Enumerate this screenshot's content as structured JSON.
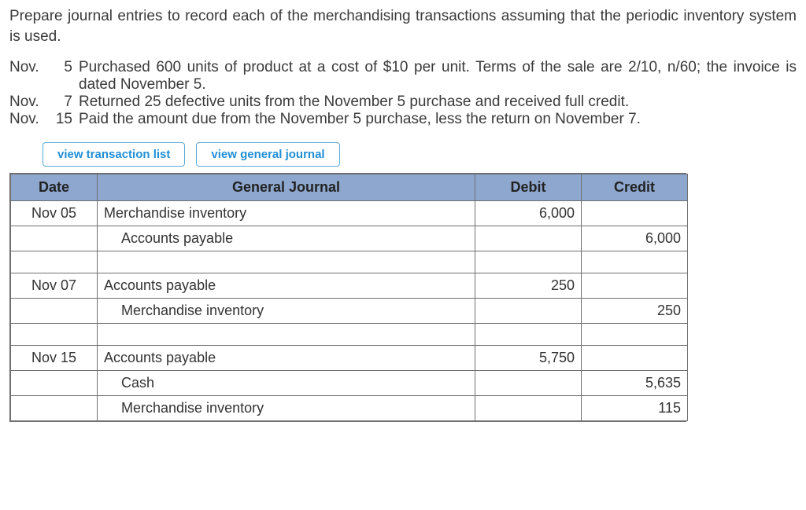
{
  "intro": "Prepare journal entries to record each of the merchandising transactions assuming that the periodic inventory system is used.",
  "transactions": [
    {
      "label": "Nov.",
      "day": "5",
      "text": "Purchased 600 units of product at a cost of $10 per unit. Terms of the sale are 2/10, n/60; the invoice is dated November 5.",
      "justify": true
    },
    {
      "label": "Nov.",
      "day": "7",
      "text": "Returned 25 defective units from the November 5 purchase and received full credit.",
      "justify": false
    },
    {
      "label": "Nov.",
      "day": "15",
      "text": "Paid the amount due from the November 5 purchase, less the return on November 7.",
      "justify": false
    }
  ],
  "buttons": {
    "view_transaction_list": "view transaction list",
    "view_general_journal": "view general journal"
  },
  "journal": {
    "headers": {
      "date": "Date",
      "account": "General Journal",
      "debit": "Debit",
      "credit": "Credit"
    },
    "header_bg": "#8ea7ce",
    "border_color": "#6f6f6f",
    "rows": [
      {
        "date": "Nov 05",
        "account": "Merchandise inventory",
        "indent": false,
        "debit": "6,000",
        "credit": ""
      },
      {
        "date": "",
        "account": "Accounts payable",
        "indent": true,
        "debit": "",
        "credit": "6,000"
      },
      {
        "spacer": true
      },
      {
        "date": "Nov 07",
        "account": "Accounts payable",
        "indent": false,
        "debit": "250",
        "credit": ""
      },
      {
        "date": "",
        "account": "Merchandise inventory",
        "indent": true,
        "debit": "",
        "credit": "250"
      },
      {
        "spacer": true
      },
      {
        "date": "Nov 15",
        "account": "Accounts payable",
        "indent": false,
        "debit": "5,750",
        "credit": ""
      },
      {
        "date": "",
        "account": "Cash",
        "indent": true,
        "debit": "",
        "credit": "5,635"
      },
      {
        "date": "",
        "account": "Merchandise inventory",
        "indent": true,
        "debit": "",
        "credit": "115"
      }
    ]
  }
}
